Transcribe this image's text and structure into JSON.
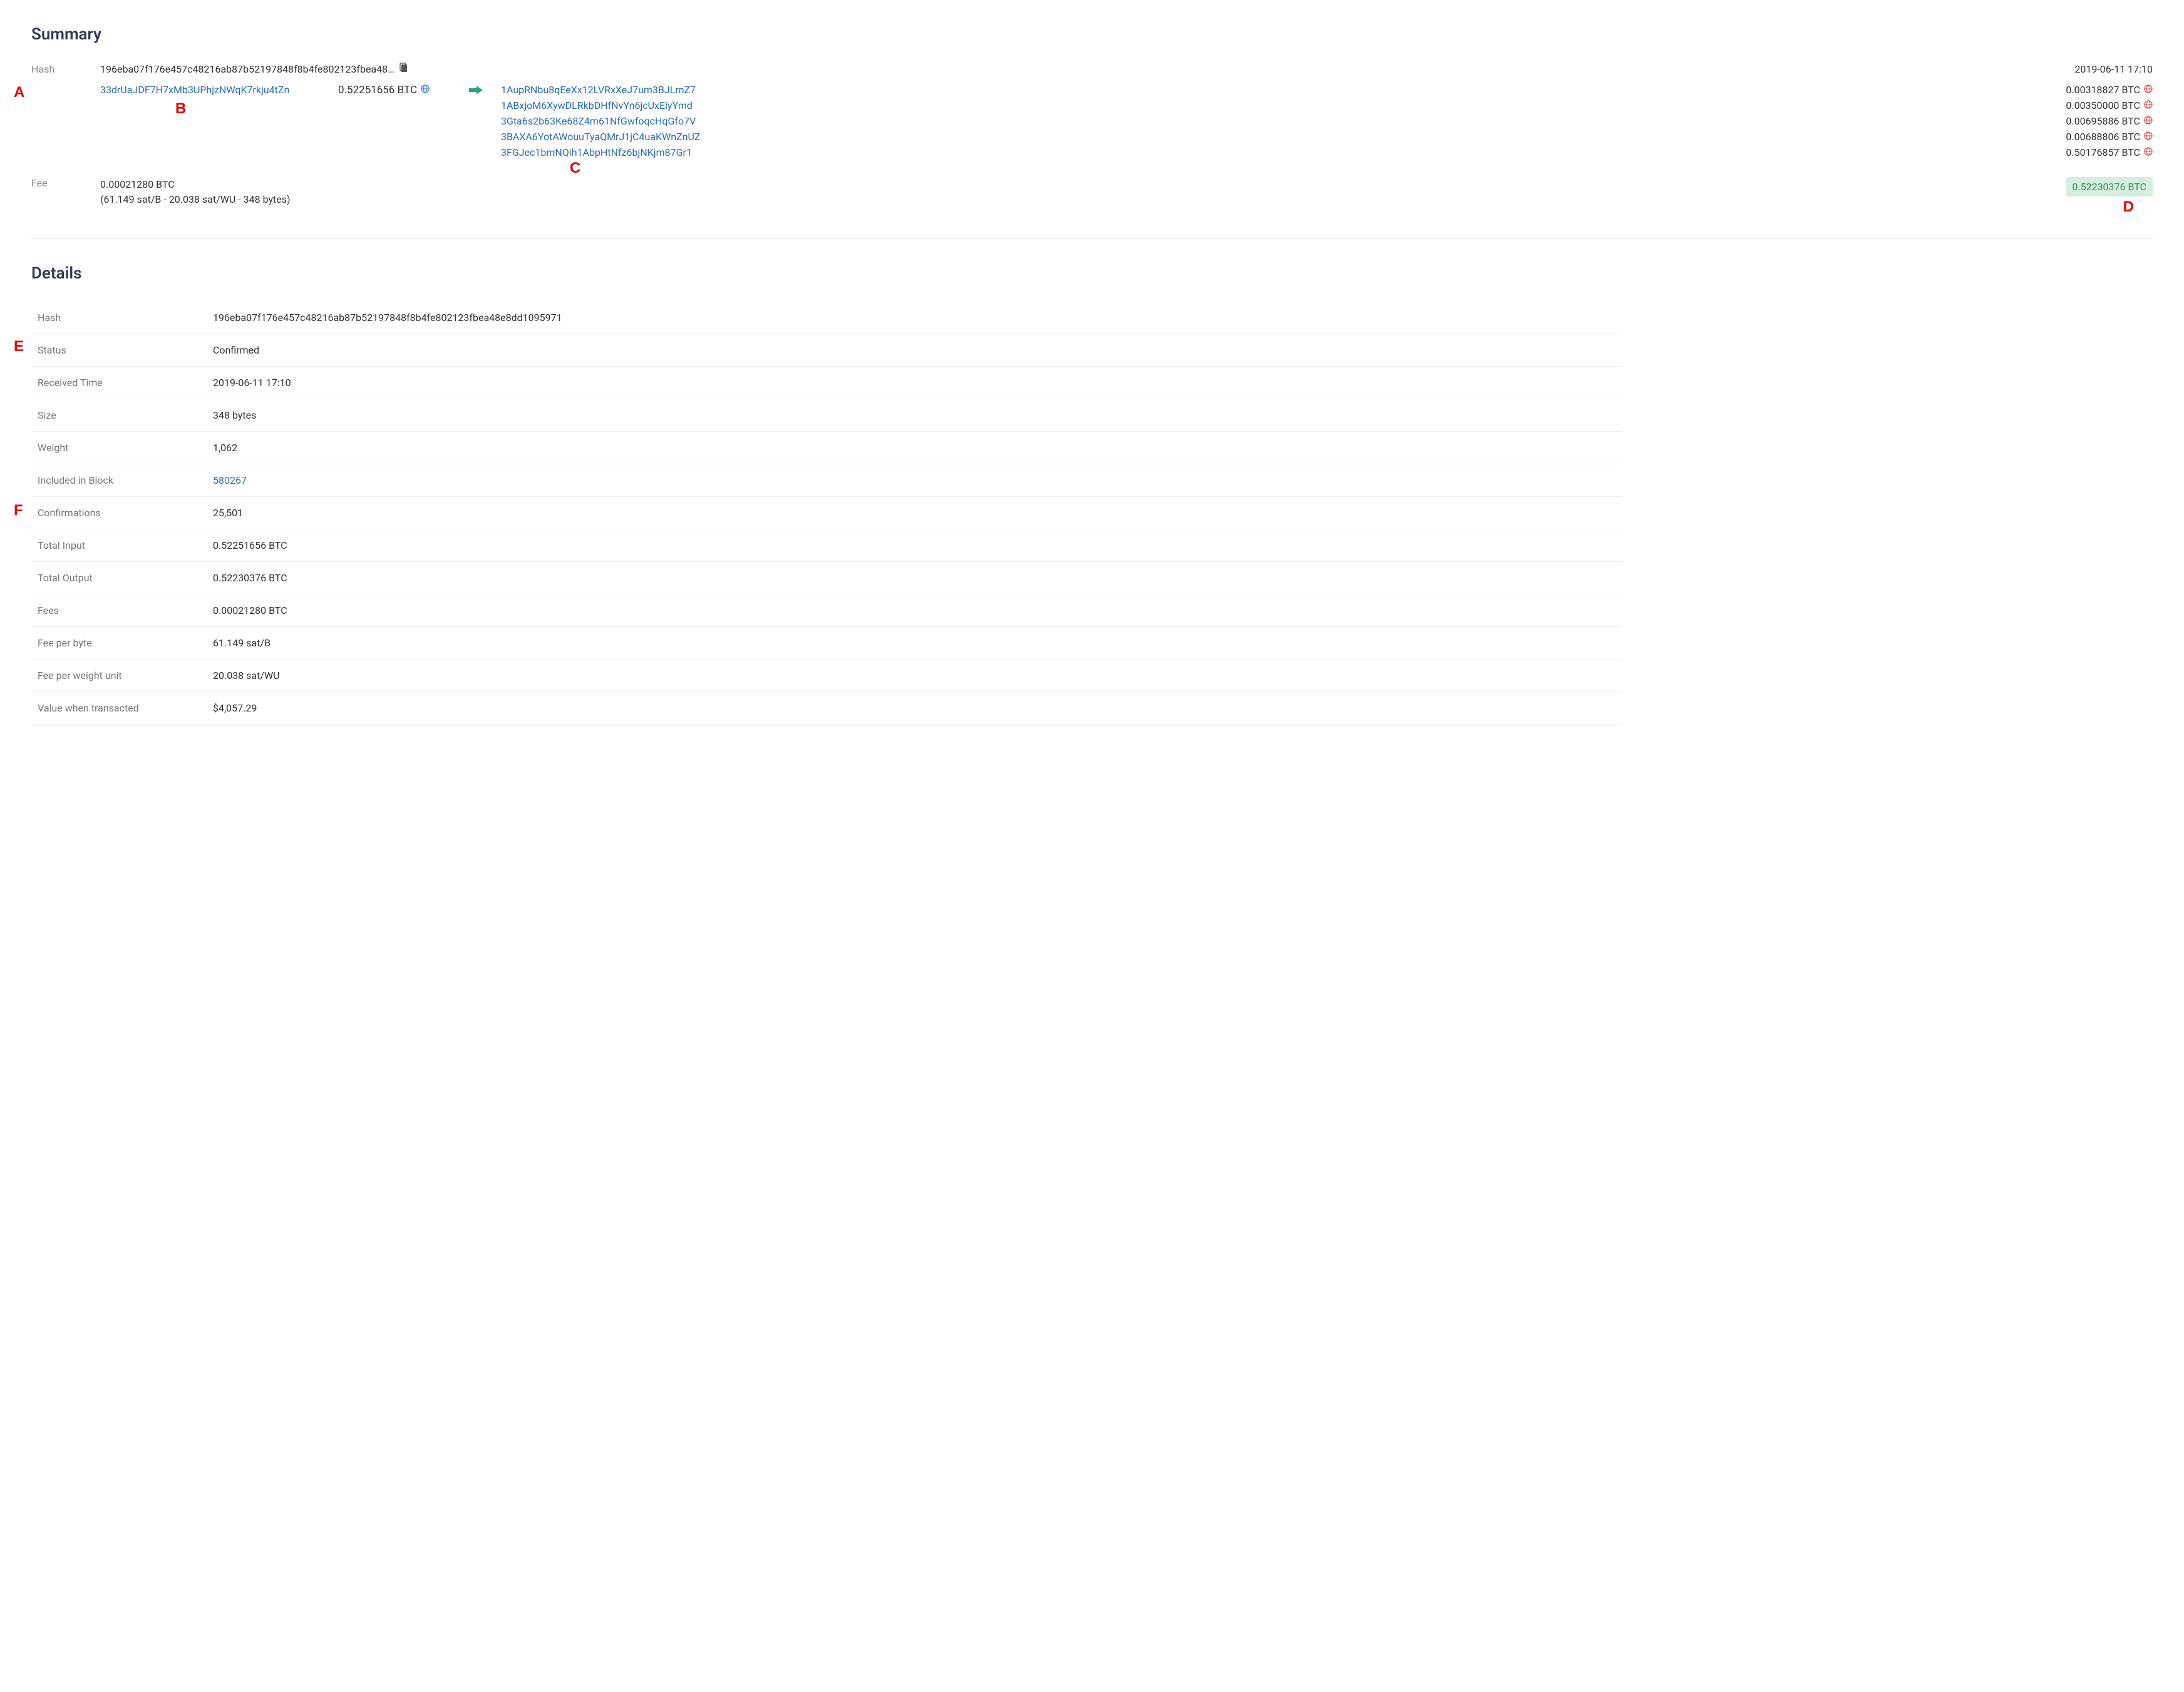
{
  "colors": {
    "link": "#2b6cb0",
    "text": "#333333",
    "muted": "#888888",
    "annotation": "#e40000",
    "confirmed": "#2a8a5a",
    "badge_bg": "#d5efdf",
    "badge_fg": "#3a8a5a",
    "globe_blue": "#3b82c4",
    "globe_red": "#d9534f",
    "divider": "#e5e5e5",
    "arrow": "#29a37a"
  },
  "annotations": {
    "A": "A",
    "B": "B",
    "C": "C",
    "D": "D",
    "E": "E",
    "F": "F"
  },
  "summary": {
    "title": "Summary",
    "hash_label": "Hash",
    "hash_truncated": "196eba07f176e457c48216ab87b52197848f8b4fe802123fbea48…",
    "timestamp": "2019-06-11 17:10",
    "input": {
      "address": "33drUaJDF7H7xMb3UPhjzNWqK7rkju4tZn",
      "amount": "0.52251656 BTC"
    },
    "outputs": [
      {
        "address": "1AupRNbu8qEeXx12LVRxXeJ7um3BJLrnZ7",
        "amount": "0.00318827 BTC"
      },
      {
        "address": "1ABxjoM6XywDLRkbDHfNvYn6jcUxEiyYmd",
        "amount": "0.00350000 BTC"
      },
      {
        "address": "3Gta6s2b63Ke68Z4m61NfGwfoqcHqGfo7V",
        "amount": "0.00695886 BTC"
      },
      {
        "address": "3BAXA6YotAWouuTyaQMrJ1jC4uaKWnZnUZ",
        "amount": "0.00688806 BTC"
      },
      {
        "address": "3FGJec1bmNQih1AbpHtNfz6bjNKjm87Gr1",
        "amount": "0.50176857 BTC"
      }
    ],
    "fee_label": "Fee",
    "fee_line1": "0.00021280 BTC",
    "fee_line2": "(61.149 sat/B - 20.038 sat/WU - 348 bytes)",
    "total_badge": "0.52230376 BTC"
  },
  "details": {
    "title": "Details",
    "rows": [
      {
        "k": "Hash",
        "v": "196eba07f176e457c48216ab87b52197848f8b4fe802123fbea48e8dd1095971",
        "type": "text"
      },
      {
        "k": "Status",
        "v": "Confirmed",
        "type": "status"
      },
      {
        "k": "Received Time",
        "v": "2019-06-11 17:10",
        "type": "text"
      },
      {
        "k": "Size",
        "v": "348 bytes",
        "type": "text"
      },
      {
        "k": "Weight",
        "v": "1,062",
        "type": "text"
      },
      {
        "k": "Included in Block",
        "v": "580267",
        "type": "link"
      },
      {
        "k": "Confirmations",
        "v": "25,501",
        "type": "text"
      },
      {
        "k": "Total Input",
        "v": "0.52251656 BTC",
        "type": "text"
      },
      {
        "k": "Total Output",
        "v": "0.52230376 BTC",
        "type": "text"
      },
      {
        "k": "Fees",
        "v": "0.00021280 BTC",
        "type": "text"
      },
      {
        "k": "Fee per byte",
        "v": "61.149 sat/B",
        "type": "text"
      },
      {
        "k": "Fee per weight unit",
        "v": "20.038 sat/WU",
        "type": "text"
      },
      {
        "k": "Value when transacted",
        "v": "$4,057.29",
        "type": "text"
      }
    ]
  }
}
